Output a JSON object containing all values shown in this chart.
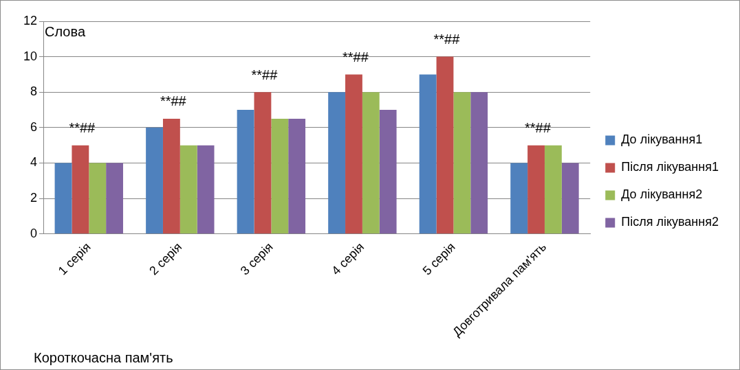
{
  "chart_data": {
    "type": "bar",
    "ylabel": "Слова",
    "xlabel": "Короткочасна пам'ять",
    "categories": [
      "1 серія",
      "2 серія",
      "3 серія",
      "4 серія",
      "5 серія",
      "Довготривала пам'ять"
    ],
    "series": [
      {
        "name": "До лікування1",
        "color": "#4f81bd",
        "values": [
          4,
          6,
          7,
          8,
          9,
          4
        ]
      },
      {
        "name": "Після лікування1",
        "color": "#c0504d",
        "values": [
          5,
          6.5,
          8,
          9,
          10,
          5
        ]
      },
      {
        "name": "До лікування2",
        "color": "#9bbb59",
        "values": [
          4,
          5,
          6.5,
          8,
          8,
          5
        ]
      },
      {
        "name": "Після лікування2",
        "color": "#8064a2",
        "values": [
          4,
          5,
          6.5,
          7,
          8,
          4
        ]
      }
    ],
    "annotations": [
      {
        "text": "**##",
        "x": "1 серія",
        "y": 5
      },
      {
        "text": "**##",
        "x": "2 серія",
        "y": 6.5
      },
      {
        "text": "**##",
        "x": "3 серія",
        "y": 8
      },
      {
        "text": "**##",
        "x": "4 серія",
        "y": 9
      },
      {
        "text": "**##",
        "x": "5 серія",
        "y": 10
      },
      {
        "text": "**##",
        "x": "Довготривала пам'ять",
        "y": 5
      }
    ],
    "ylim": [
      0,
      12
    ],
    "yticks": [
      0,
      2,
      4,
      6,
      8,
      10,
      12
    ],
    "grid": "y",
    "legend": "right"
  }
}
